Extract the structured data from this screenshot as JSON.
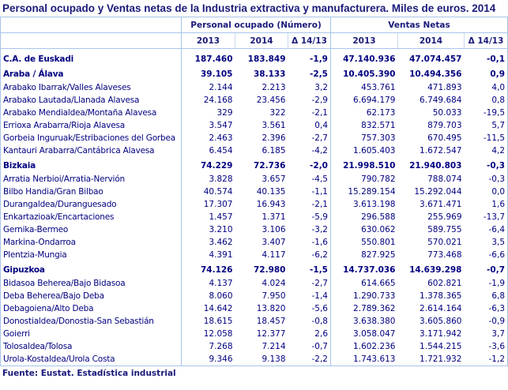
{
  "title": "Personal ocupado y Ventas netas de la  Industria extractiva y manufacturera. Miles de euros. 2014",
  "header": {
    "group1": "Personal ocupado  (Número)",
    "group2": "Ventas Netas",
    "cols": [
      "2013",
      "2014",
      "Δ 14/13",
      "2013",
      "2014",
      "Δ 14/13"
    ]
  },
  "rows": [
    {
      "label": "C.A. de Euskadi",
      "bold": true,
      "values": [
        "187.460",
        "183.849",
        "-1,9",
        "47.140.936",
        "47.074.457",
        "-0,1"
      ]
    },
    {
      "label": "Araba / Álava",
      "bold": true,
      "values": [
        "39.105",
        "38.133",
        "-2,5",
        "10.405.390",
        "10.494.356",
        "0,9"
      ]
    },
    {
      "label": "Arabako Ibarrak/Valles Alaveses",
      "values": [
        "2.144",
        "2.213",
        "3,2",
        "453.761",
        "471.893",
        "4,0"
      ]
    },
    {
      "label": "Arabako Lautada/Llanada Alavesa",
      "values": [
        "24.168",
        "23.456",
        "-2,9",
        "6.694.179",
        "6.749.684",
        "0,8"
      ]
    },
    {
      "label": "Arabako Mendialdea/Montaña Alavesa",
      "values": [
        "329",
        "322",
        "-2,1",
        "62.173",
        "50.033",
        "-19,5"
      ]
    },
    {
      "label": "Errioxa Arabarra/Rioja Alavesa",
      "values": [
        "3.547",
        "3.561",
        "0,4",
        "832.571",
        "879.703",
        "5,7"
      ]
    },
    {
      "label": "Gorbeia Inguruak/Estribaciones del Gorbea",
      "values": [
        "2.463",
        "2.396",
        "-2,7",
        "757.303",
        "670.495",
        "-11,5"
      ]
    },
    {
      "label": "Kantauri Arabarra/Cantábrica Alavesa",
      "values": [
        "6.454",
        "6.185",
        "-4,2",
        "1.605.403",
        "1.672.547",
        "4,2"
      ]
    },
    {
      "label": "Bizkaia",
      "bold": true,
      "values": [
        "74.229",
        "72.736",
        "-2,0",
        "21.998.510",
        "21.940.803",
        "-0,3"
      ]
    },
    {
      "label": "Arratia Nerbioi/Arratia-Nervión",
      "values": [
        "3.828",
        "3.657",
        "-4,5",
        "790.782",
        "788.074",
        "-0,3"
      ]
    },
    {
      "label": "Bilbo Handia/Gran Bilbao",
      "values": [
        "40.574",
        "40.135",
        "-1,1",
        "15.289.154",
        "15.292.044",
        "0,0"
      ]
    },
    {
      "label": "Durangaldea/Duranguesado",
      "values": [
        "17.307",
        "16.943",
        "-2,1",
        "3.613.198",
        "3.671.471",
        "1,6"
      ]
    },
    {
      "label": "Enkartazioak/Encartaciones",
      "values": [
        "1.457",
        "1.371",
        "-5,9",
        "296.588",
        "255.969",
        "-13,7"
      ]
    },
    {
      "label": "Gernika-Bermeo",
      "values": [
        "3.210",
        "3.106",
        "-3,2",
        "630.062",
        "589.755",
        "-6,4"
      ]
    },
    {
      "label": "Markina-Ondarroa",
      "values": [
        "3.462",
        "3.407",
        "-1,6",
        "550.801",
        "570.021",
        "3,5"
      ]
    },
    {
      "label": "Plentzia-Mungia",
      "values": [
        "4.391",
        "4.117",
        "-6,2",
        "827.925",
        "773.468",
        "-6,6"
      ]
    },
    {
      "label": "Gipuzkoa",
      "bold": true,
      "values": [
        "74.126",
        "72.980",
        "-1,5",
        "14.737.036",
        "14.639.298",
        "-0,7"
      ]
    },
    {
      "label": "Bidasoa Beherea/Bajo Bidasoa",
      "values": [
        "4.137",
        "4.024",
        "-2,7",
        "614.665",
        "602.821",
        "-1,9"
      ]
    },
    {
      "label": "Deba Beherea/Bajo Deba",
      "values": [
        "8.060",
        "7.950",
        "-1,4",
        "1.290.733",
        "1.378.365",
        "6,8"
      ]
    },
    {
      "label": "Debagoiena/Alto Deba",
      "values": [
        "14.642",
        "13.820",
        "-5,6",
        "2.789.362",
        "2.614.164",
        "-6,3"
      ]
    },
    {
      "label": "Donostialdea/Donostia-San Sebastián",
      "values": [
        "18.615",
        "18.457",
        "-0,8",
        "3.638.380",
        "3.605.860",
        "-0,9"
      ]
    },
    {
      "label": "Goierri",
      "values": [
        "12.058",
        "12.377",
        "2,6",
        "3.058.047",
        "3.171.942",
        "3,7"
      ]
    },
    {
      "label": "Tolosaldea/Tolosa",
      "values": [
        "7.268",
        "7.214",
        "-0,7",
        "1.602.236",
        "1.544.215",
        "-3,6"
      ]
    },
    {
      "label": "Urola-Kostaldea/Urola Costa",
      "values": [
        "9.346",
        "9.138",
        "-2,2",
        "1.743.613",
        "1.721.932",
        "-1,2"
      ]
    }
  ],
  "source": "Fuente: Eustat. Estadística industrial"
}
